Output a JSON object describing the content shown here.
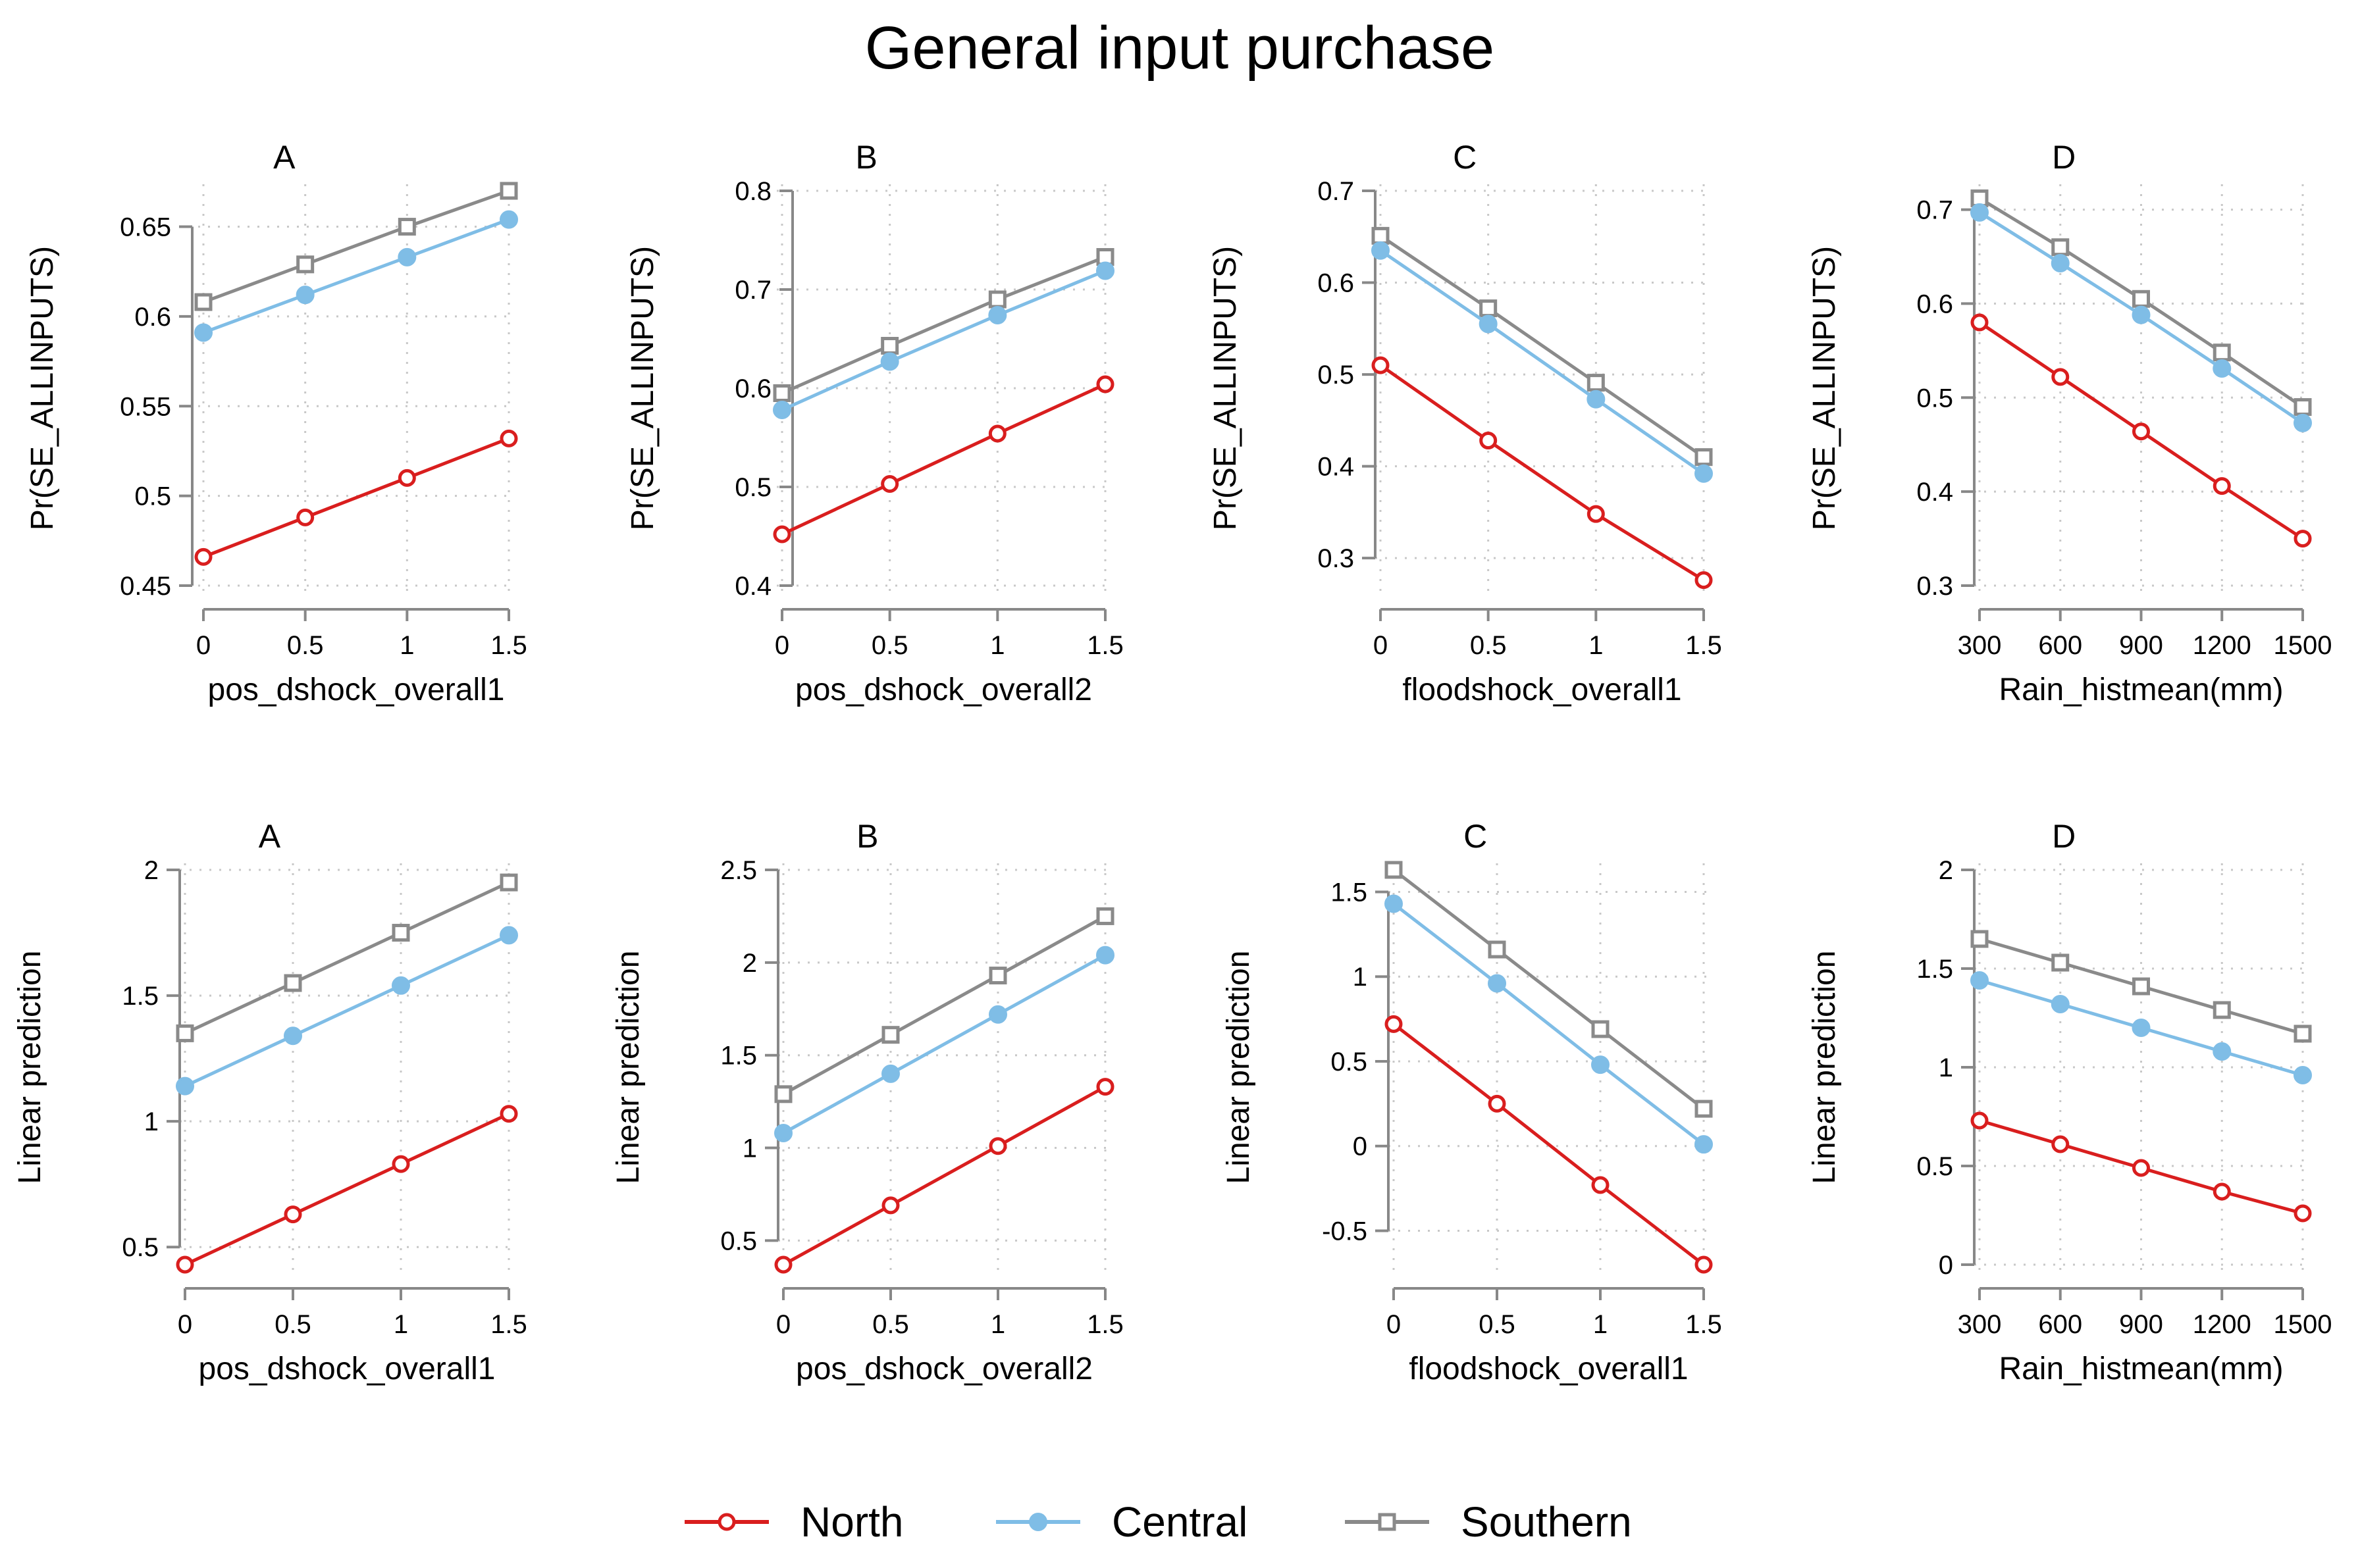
{
  "title": "General input purchase",
  "colors": {
    "North": "#d91e1e",
    "Central": "#7fbde6",
    "Southern": "#8a8a8a",
    "grid": "#c8c8c8",
    "axis": "#888888"
  },
  "legend": [
    {
      "name": "North",
      "marker": "circle-open"
    },
    {
      "name": "Central",
      "marker": "circle-filled"
    },
    {
      "name": "Southern",
      "marker": "square-open"
    }
  ],
  "chart_data": [
    {
      "type": "line",
      "panel": "A",
      "xlabel": "pos_dshock_overall1",
      "ylabel": "Pr(SE_ALLINPUTS)",
      "x": [
        0,
        0.5,
        1,
        1.5
      ],
      "xticks": [
        "0",
        "0.5",
        "1",
        "1.5"
      ],
      "yticks": [
        0.45,
        0.5,
        0.55,
        0.6,
        0.65
      ],
      "ytick_labels": [
        "0.45",
        "0.5",
        "0.55",
        "0.6",
        "0.65"
      ],
      "ylim": [
        0.45,
        0.67
      ],
      "series": [
        {
          "name": "North",
          "values": [
            0.466,
            0.488,
            0.51,
            0.532
          ]
        },
        {
          "name": "Central",
          "values": [
            0.591,
            0.612,
            0.633,
            0.654
          ]
        },
        {
          "name": "Southern",
          "values": [
            0.608,
            0.629,
            0.65,
            0.67
          ]
        }
      ]
    },
    {
      "type": "line",
      "panel": "B",
      "xlabel": "pos_dshock_overall2",
      "ylabel": "Pr(SE_ALLINPUTS)",
      "x": [
        0,
        0.5,
        1,
        1.5
      ],
      "xticks": [
        "0",
        "0.5",
        "1",
        "1.5"
      ],
      "yticks": [
        0.4,
        0.5,
        0.6,
        0.7,
        0.8
      ],
      "ytick_labels": [
        "0.4",
        "0.5",
        "0.6",
        "0.7",
        "0.8"
      ],
      "ylim": [
        0.4,
        0.8
      ],
      "series": [
        {
          "name": "North",
          "values": [
            0.452,
            0.503,
            0.554,
            0.604
          ]
        },
        {
          "name": "Central",
          "values": [
            0.578,
            0.627,
            0.674,
            0.719
          ]
        },
        {
          "name": "Southern",
          "values": [
            0.595,
            0.643,
            0.69,
            0.733
          ]
        }
      ]
    },
    {
      "type": "line",
      "panel": "C",
      "xlabel": "floodshock_overall1",
      "ylabel": "Pr(SE_ALLINPUTS)",
      "x": [
        0,
        0.5,
        1,
        1.5
      ],
      "xticks": [
        "0",
        "0.5",
        "1",
        "1.5"
      ],
      "yticks": [
        0.3,
        0.4,
        0.5,
        0.6,
        0.7
      ],
      "ytick_labels": [
        "0.3",
        "0.4",
        "0.5",
        "0.6",
        "0.7"
      ],
      "ylim": [
        0.27,
        0.7
      ],
      "series": [
        {
          "name": "North",
          "values": [
            0.51,
            0.428,
            0.348,
            0.276
          ]
        },
        {
          "name": "Central",
          "values": [
            0.635,
            0.555,
            0.473,
            0.392
          ]
        },
        {
          "name": "Southern",
          "values": [
            0.651,
            0.572,
            0.491,
            0.41
          ]
        }
      ]
    },
    {
      "type": "line",
      "panel": "D",
      "xlabel": "Rain_histmean(mm)",
      "ylabel": "Pr(SE_ALLINPUTS)",
      "x": [
        300,
        600,
        900,
        1200,
        1500
      ],
      "xticks": [
        "300",
        "600",
        "900",
        "1200",
        "1500"
      ],
      "yticks": [
        0.3,
        0.4,
        0.5,
        0.6,
        0.7
      ],
      "ytick_labels": [
        "0.3",
        "0.4",
        "0.5",
        "0.6",
        "0.7"
      ],
      "ylim": [
        0.3,
        0.72
      ],
      "series": [
        {
          "name": "North",
          "values": [
            0.58,
            0.522,
            0.464,
            0.406,
            0.35
          ]
        },
        {
          "name": "Central",
          "values": [
            0.697,
            0.643,
            0.588,
            0.531,
            0.473
          ]
        },
        {
          "name": "Southern",
          "values": [
            0.712,
            0.66,
            0.605,
            0.548,
            0.49
          ]
        }
      ]
    },
    {
      "type": "line",
      "panel": "A",
      "xlabel": "pos_dshock_overall1",
      "ylabel": "Linear prediction",
      "x": [
        0,
        0.5,
        1,
        1.5
      ],
      "xticks": [
        "0",
        "0.5",
        "1",
        "1.5"
      ],
      "yticks": [
        0.5,
        1,
        1.5,
        2
      ],
      "ytick_labels": [
        "0.5",
        "1",
        "1.5",
        "2"
      ],
      "ylim": [
        0.43,
        2
      ],
      "series": [
        {
          "name": "North",
          "values": [
            0.43,
            0.63,
            0.83,
            1.03
          ]
        },
        {
          "name": "Central",
          "values": [
            1.14,
            1.34,
            1.54,
            1.74
          ]
        },
        {
          "name": "Southern",
          "values": [
            1.35,
            1.55,
            1.75,
            1.95
          ]
        }
      ]
    },
    {
      "type": "line",
      "panel": "B",
      "xlabel": "pos_dshock_overall2",
      "ylabel": "Linear prediction",
      "x": [
        0,
        0.5,
        1,
        1.5
      ],
      "xticks": [
        "0",
        "0.5",
        "1",
        "1.5"
      ],
      "yticks": [
        0.5,
        1,
        1.5,
        2,
        2.5
      ],
      "ytick_labels": [
        "0.5",
        "1",
        "1.5",
        "2",
        "2.5"
      ],
      "ylim": [
        0.37,
        2.5
      ],
      "series": [
        {
          "name": "North",
          "values": [
            0.37,
            0.69,
            1.01,
            1.33
          ]
        },
        {
          "name": "Central",
          "values": [
            1.08,
            1.4,
            1.72,
            2.04
          ]
        },
        {
          "name": "Southern",
          "values": [
            1.29,
            1.61,
            1.93,
            2.25
          ]
        }
      ]
    },
    {
      "type": "line",
      "panel": "C",
      "xlabel": "floodshock_overall1",
      "ylabel": "Linear prediction",
      "x": [
        0,
        0.5,
        1,
        1.5
      ],
      "xticks": [
        "0",
        "0.5",
        "1",
        "1.5"
      ],
      "yticks": [
        -0.5,
        0,
        0.5,
        1,
        1.5
      ],
      "ytick_labels": [
        "-0.5",
        "0",
        "0.5",
        "1",
        "1.5"
      ],
      "ylim": [
        -0.7,
        1.63
      ],
      "series": [
        {
          "name": "North",
          "values": [
            0.72,
            0.25,
            -0.23,
            -0.7
          ]
        },
        {
          "name": "Central",
          "values": [
            1.43,
            0.96,
            0.48,
            0.01
          ]
        },
        {
          "name": "Southern",
          "values": [
            1.63,
            1.16,
            0.69,
            0.22
          ]
        }
      ]
    },
    {
      "type": "line",
      "panel": "D",
      "xlabel": "Rain_histmean(mm)",
      "ylabel": "Linear prediction",
      "x": [
        300,
        600,
        900,
        1200,
        1500
      ],
      "xticks": [
        "300",
        "600",
        "900",
        "1200",
        "1500"
      ],
      "yticks": [
        0,
        0.5,
        1,
        1.5,
        2
      ],
      "ytick_labels": [
        "0",
        "0.5",
        "1",
        "1.5",
        "2"
      ],
      "ylim": [
        0,
        2
      ],
      "series": [
        {
          "name": "North",
          "values": [
            0.73,
            0.61,
            0.49,
            0.37,
            0.26
          ]
        },
        {
          "name": "Central",
          "values": [
            1.44,
            1.32,
            1.2,
            1.08,
            0.96
          ]
        },
        {
          "name": "Southern",
          "values": [
            1.65,
            1.53,
            1.41,
            1.29,
            1.17
          ]
        }
      ]
    }
  ]
}
